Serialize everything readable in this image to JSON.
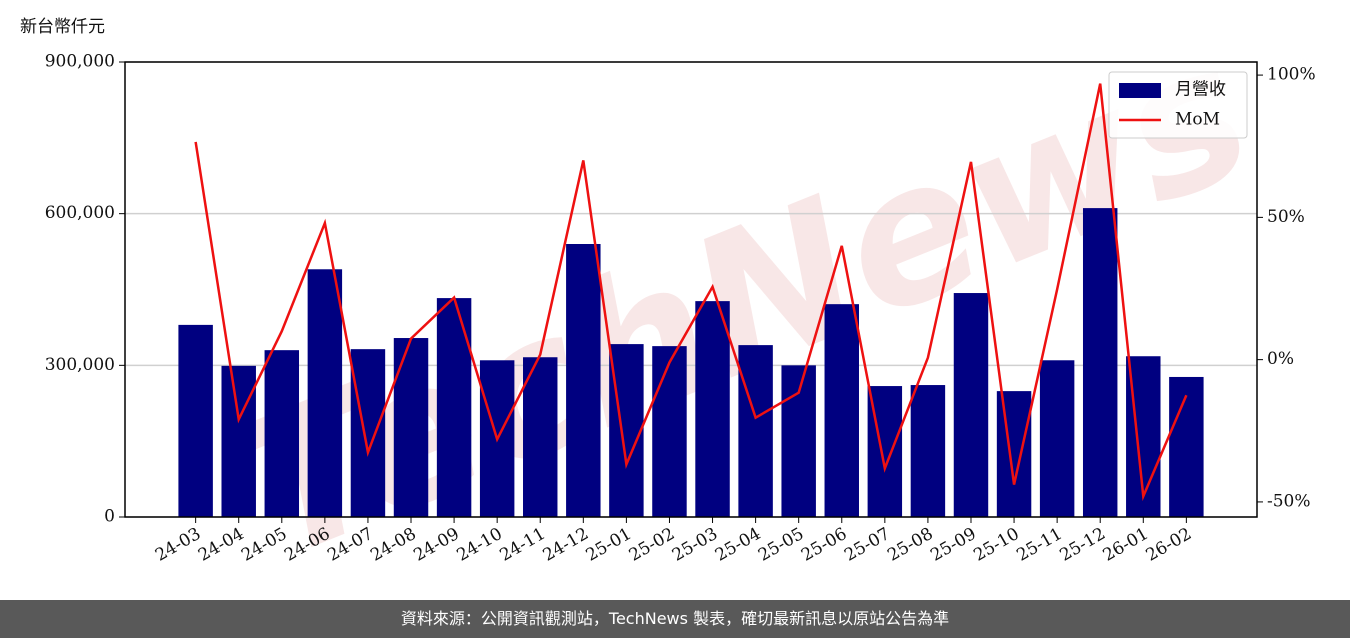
{
  "chart_data": {
    "type": "combo",
    "y_label": "新台幣仟元",
    "watermark": "TechNews",
    "footer": "資料來源：公開資訊觀測站，TechNews 製表，確切最新訊息以原站公告為準",
    "categories": [
      "24-03",
      "24-04",
      "24-05",
      "24-06",
      "24-07",
      "24-08",
      "24-09",
      "24-10",
      "24-11",
      "24-12",
      "25-01",
      "25-02",
      "25-03",
      "25-04",
      "25-05",
      "25-06",
      "25-07",
      "25-08",
      "25-09",
      "25-10",
      "25-11",
      "25-12",
      "26-01",
      "26-02"
    ],
    "series": [
      {
        "name": "月營收",
        "type": "bar",
        "axis": "y",
        "color": "#000080",
        "values": [
          380000,
          299000,
          330000,
          490000,
          332000,
          354000,
          433000,
          310000,
          316000,
          540000,
          342000,
          338000,
          427000,
          340000,
          300000,
          421000,
          259000,
          261000,
          443000,
          249000,
          310000,
          611000,
          318000,
          277000
        ]
      },
      {
        "name": "MoM",
        "type": "line",
        "axis": "y2",
        "color": "#ee1111",
        "values": [
          76.5,
          -21,
          10,
          48,
          -32.6,
          7.4,
          21.8,
          -28,
          1.8,
          70,
          -36.8,
          -1,
          25.6,
          -20.4,
          -11.6,
          40,
          -38.2,
          0.7,
          69.5,
          -43.9,
          24.7,
          97,
          -48,
          -12.5
        ]
      }
    ],
    "ylim": [
      0,
      900000
    ],
    "yticks": [
      0,
      {
        "value": 300000,
        "label": "300,000"
      },
      {
        "value": 600000,
        "label": "600,000"
      },
      {
        "value": 900000,
        "label": "900,000"
      }
    ],
    "y2lim": [
      -55.3,
      104.6
    ],
    "y2ticks": [
      {
        "value": -50,
        "label": "-50%"
      },
      {
        "value": 0,
        "label": "0%"
      },
      {
        "value": 50,
        "label": "50%"
      },
      {
        "value": 100,
        "label": "100%"
      }
    ],
    "grid": true,
    "legend": "upper right"
  }
}
